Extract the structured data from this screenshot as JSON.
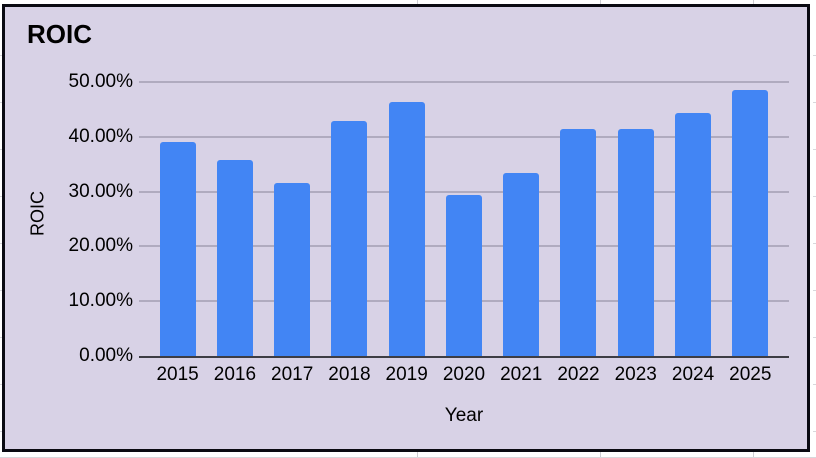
{
  "chart": {
    "title": "ROIC",
    "y_axis_title": "ROIC",
    "x_axis_title": "Year"
  },
  "chart_data": {
    "type": "bar",
    "title": "ROIC",
    "xlabel": "Year",
    "ylabel": "ROIC",
    "categories": [
      "2015",
      "2016",
      "2017",
      "2018",
      "2019",
      "2020",
      "2021",
      "2022",
      "2023",
      "2024",
      "2025"
    ],
    "values": [
      39.0,
      35.7,
      31.6,
      42.9,
      46.3,
      29.4,
      33.4,
      41.5,
      41.5,
      44.3,
      48.5
    ],
    "unit": "percent",
    "ylim": [
      0,
      50
    ],
    "ytick_step": 10,
    "ytick_labels": [
      "0.00%",
      "10.00%",
      "20.00%",
      "30.00%",
      "40.00%",
      "50.00%"
    ],
    "grid": true,
    "legend_position": "none",
    "colors": {
      "bar": "#4285f4",
      "plot_background": "#d8d2e6",
      "gridline": "#b0abbf",
      "axis_line": "#3d3d44",
      "text": "#000000",
      "frame_border": "#0a0a12"
    }
  }
}
